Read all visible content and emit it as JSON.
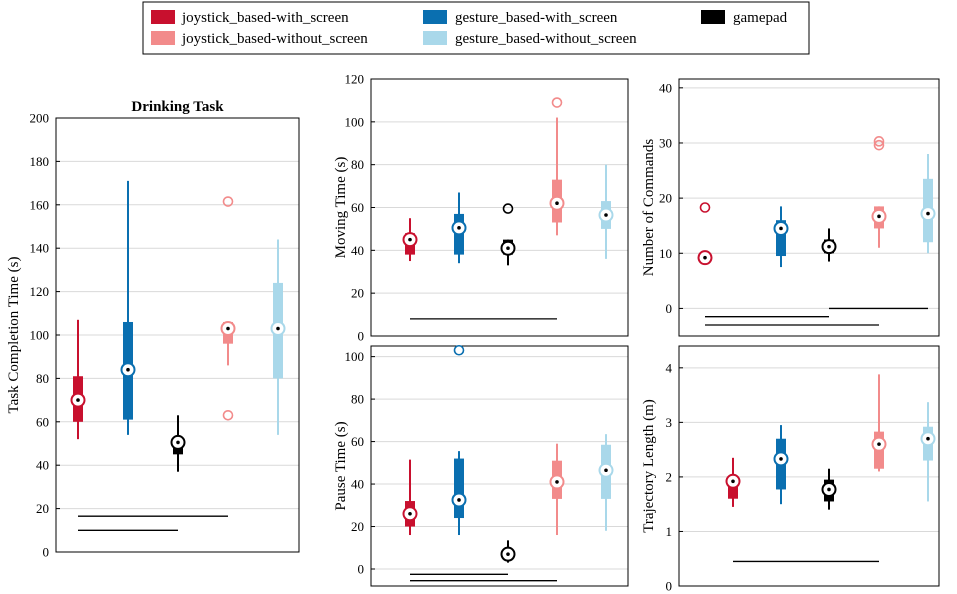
{
  "figure": {
    "legend": [
      {
        "label": "joystick_based-with_screen",
        "color": "#c8102e"
      },
      {
        "label": "joystick_based-without_screen",
        "color": "#f28b8b"
      },
      {
        "label": "gesture_based-with_screen",
        "color": "#0a6fb0"
      },
      {
        "label": "gesture_based-without_screen",
        "color": "#a9d8ea"
      },
      {
        "label": "gamepad",
        "color": "#000000"
      }
    ]
  },
  "chart_data": [
    {
      "type": "boxplot",
      "title": "Drinking Task",
      "ylabel": "Task Completion Time (s)",
      "ylim": [
        0,
        200
      ],
      "yticks": [
        0,
        20,
        40,
        60,
        80,
        100,
        120,
        140,
        160,
        180,
        200
      ],
      "groups": [
        {
          "name": "joystick_based-with_screen",
          "color": "#c8102e",
          "whisker_low": 52,
          "q1": 60,
          "median": 70,
          "q3": 81,
          "whisker_high": 107,
          "outliers": []
        },
        {
          "name": "gesture_based-with_screen",
          "color": "#0a6fb0",
          "whisker_low": 54,
          "q1": 61,
          "median": 84,
          "q3": 106,
          "whisker_high": 171,
          "outliers": []
        },
        {
          "name": "gamepad",
          "color": "#000000",
          "whisker_low": 37,
          "q1": 45,
          "median": 50.5,
          "q3": 52,
          "whisker_high": 63,
          "outliers": []
        },
        {
          "name": "joystick_based-without_screen",
          "color": "#f28b8b",
          "whisker_low": 86,
          "q1": 96,
          "median": 103,
          "q3": 106,
          "whisker_high": 106,
          "outliers": [
            161.5,
            63
          ]
        },
        {
          "name": "gesture_based-without_screen",
          "color": "#a9d8ea",
          "whisker_low": 54,
          "q1": 80,
          "median": 103,
          "q3": 124,
          "whisker_high": 144,
          "outliers": []
        }
      ],
      "significance_bars": [
        {
          "from_group": 0,
          "to_group": 3,
          "y": 16.5
        },
        {
          "from_group": 0,
          "to_group": 2,
          "y": 10
        }
      ]
    },
    {
      "type": "boxplot",
      "title": "",
      "ylabel": "Moving Time (s)",
      "ylim": [
        0,
        120
      ],
      "yticks": [
        0,
        20,
        40,
        60,
        80,
        100,
        120
      ],
      "groups": [
        {
          "name": "joystick_based-with_screen",
          "color": "#c8102e",
          "whisker_low": 35,
          "q1": 38,
          "median": 45,
          "q3": 48,
          "whisker_high": 55,
          "outliers": []
        },
        {
          "name": "gesture_based-with_screen",
          "color": "#0a6fb0",
          "whisker_low": 34,
          "q1": 38,
          "median": 50.5,
          "q3": 57,
          "whisker_high": 67,
          "outliers": []
        },
        {
          "name": "gamepad",
          "color": "#000000",
          "whisker_low": 33,
          "q1": 38,
          "median": 41,
          "q3": 45,
          "whisker_high": 45,
          "outliers": [
            59.5
          ]
        },
        {
          "name": "joystick_based-without_screen",
          "color": "#f28b8b",
          "whisker_low": 47,
          "q1": 53,
          "median": 62,
          "q3": 73,
          "whisker_high": 102,
          "outliers": [
            109
          ]
        },
        {
          "name": "gesture_based-without_screen",
          "color": "#a9d8ea",
          "whisker_low": 36,
          "q1": 50,
          "median": 56.5,
          "q3": 63,
          "whisker_high": 80,
          "outliers": []
        }
      ],
      "significance_bars": [
        {
          "from_group": 0,
          "to_group": 3,
          "y": 8
        }
      ]
    },
    {
      "type": "boxplot",
      "title": "",
      "ylabel": "Number of Commands",
      "ylim": [
        -5,
        41.6
      ],
      "yticks": [
        0,
        10,
        20,
        30,
        40
      ],
      "groups": [
        {
          "name": "joystick_based-with_screen",
          "color": "#c8102e",
          "whisker_low": 8.5,
          "q1": 9,
          "median": 9.2,
          "q3": 10,
          "whisker_high": 10.5,
          "outliers": [
            18.3
          ]
        },
        {
          "name": "gesture_based-with_screen",
          "color": "#0a6fb0",
          "whisker_low": 7.5,
          "q1": 9.5,
          "median": 14.5,
          "q3": 16,
          "whisker_high": 18.5,
          "outliers": []
        },
        {
          "name": "gamepad",
          "color": "#000000",
          "whisker_low": 8.5,
          "q1": 10,
          "median": 11.2,
          "q3": 12.5,
          "whisker_high": 14.5,
          "outliers": []
        },
        {
          "name": "joystick_based-without_screen",
          "color": "#f28b8b",
          "whisker_low": 11,
          "q1": 14.5,
          "median": 16.7,
          "q3": 18.5,
          "whisker_high": 18.5,
          "outliers": [
            30.3,
            29.6
          ]
        },
        {
          "name": "gesture_based-without_screen",
          "color": "#a9d8ea",
          "whisker_low": 10,
          "q1": 12,
          "median": 17.2,
          "q3": 23.5,
          "whisker_high": 28,
          "outliers": []
        }
      ],
      "significance_bars": [
        {
          "from_group": 2,
          "to_group": 4,
          "y": 0
        },
        {
          "from_group": 0,
          "to_group": 2,
          "y": -1.5
        },
        {
          "from_group": 0,
          "to_group": 3,
          "y": -3
        }
      ]
    },
    {
      "type": "boxplot",
      "title": "",
      "ylabel": "Pause Time (s)",
      "ylim": [
        -8,
        105
      ],
      "yticks": [
        0,
        20,
        40,
        60,
        80,
        100
      ],
      "groups": [
        {
          "name": "joystick_based-with_screen",
          "color": "#c8102e",
          "whisker_low": 16,
          "q1": 20,
          "median": 26,
          "q3": 32,
          "whisker_high": 51.5,
          "outliers": []
        },
        {
          "name": "gesture_based-with_screen",
          "color": "#0a6fb0",
          "whisker_low": 16,
          "q1": 24,
          "median": 32.5,
          "q3": 52,
          "whisker_high": 55.5,
          "outliers": [
            103
          ]
        },
        {
          "name": "gamepad",
          "color": "#000000",
          "whisker_low": 3,
          "q1": 5,
          "median": 7,
          "q3": 9,
          "whisker_high": 13.5,
          "outliers": []
        },
        {
          "name": "joystick_based-without_screen",
          "color": "#f28b8b",
          "whisker_low": 16,
          "q1": 33,
          "median": 41,
          "q3": 51,
          "whisker_high": 59,
          "outliers": []
        },
        {
          "name": "gesture_based-without_screen",
          "color": "#a9d8ea",
          "whisker_low": 18,
          "q1": 33,
          "median": 46.5,
          "q3": 58.5,
          "whisker_high": 63.5,
          "outliers": []
        }
      ],
      "significance_bars": [
        {
          "from_group": 0,
          "to_group": 2,
          "y": -2.5
        },
        {
          "from_group": 0,
          "to_group": 3,
          "y": -5.5
        }
      ]
    },
    {
      "type": "boxplot",
      "title": "",
      "ylabel": "Trajectory Length (m)",
      "ylim": [
        0,
        4.4
      ],
      "yticks": [
        0,
        1,
        2,
        3,
        4
      ],
      "groups": [
        {
          "name": "joystick_based-with_screen",
          "color": "#c8102e",
          "whisker_low": 1.45,
          "q1": 1.6,
          "median": 1.92,
          "q3": 2.0,
          "whisker_high": 2.35,
          "outliers": []
        },
        {
          "name": "gesture_based-with_screen",
          "color": "#0a6fb0",
          "whisker_low": 1.5,
          "q1": 1.77,
          "median": 2.33,
          "q3": 2.7,
          "whisker_high": 2.95,
          "outliers": []
        },
        {
          "name": "gamepad",
          "color": "#000000",
          "whisker_low": 1.4,
          "q1": 1.55,
          "median": 1.77,
          "q3": 1.95,
          "whisker_high": 2.15,
          "outliers": []
        },
        {
          "name": "joystick_based-without_screen",
          "color": "#f28b8b",
          "whisker_low": 2.1,
          "q1": 2.15,
          "median": 2.6,
          "q3": 2.83,
          "whisker_high": 3.88,
          "outliers": []
        },
        {
          "name": "gesture_based-without_screen",
          "color": "#a9d8ea",
          "whisker_low": 1.55,
          "q1": 2.3,
          "median": 2.7,
          "q3": 2.92,
          "whisker_high": 3.37,
          "outliers": []
        }
      ],
      "significance_bars": [
        {
          "from_group": 0,
          "to_group": 3,
          "y": 0.45
        }
      ]
    }
  ]
}
